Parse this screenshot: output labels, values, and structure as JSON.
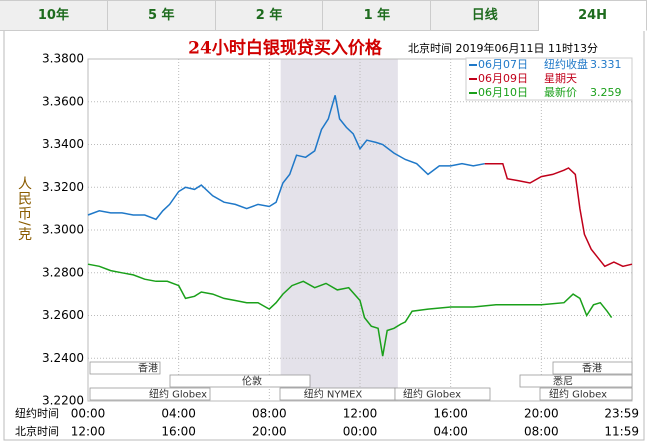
{
  "tabs": [
    "10年",
    "5 年",
    "2 年",
    "1 年",
    "日线",
    "24H"
  ],
  "chart_data": {
    "type": "line",
    "title": "24小时白银现贷买入价格",
    "subtitle": "北京时间 2019年06月11日 11时13分",
    "y_label": "人民币/克",
    "x_label": "纽约时间",
    "x2_label": "北京时间",
    "xlim": [
      0,
      24
    ],
    "xticks": [
      {
        "value": 0,
        "label": "00:00"
      },
      {
        "value": 4,
        "label": "04:00"
      },
      {
        "value": 8,
        "label": "08:00"
      },
      {
        "value": 12,
        "label": "12:00"
      },
      {
        "value": 16,
        "label": "16:00"
      },
      {
        "value": 20,
        "label": "20:00"
      },
      {
        "value": 23.983,
        "label": "23:59"
      }
    ],
    "x2ticks": [
      {
        "value": 0,
        "label": "12:00"
      },
      {
        "value": 4,
        "label": "16:00"
      },
      {
        "value": 8,
        "label": "20:00"
      },
      {
        "value": 12,
        "label": "00:00"
      },
      {
        "value": 16,
        "label": "04:00"
      },
      {
        "value": 20,
        "label": "08:00"
      },
      {
        "value": 23.983,
        "label": "11:59"
      }
    ],
    "ylim": [
      3.22,
      3.38
    ],
    "yticks": [
      {
        "value": 3.22,
        "label": "3.2200"
      },
      {
        "value": 3.24,
        "label": "3.2400"
      },
      {
        "value": 3.26,
        "label": "3.2600"
      },
      {
        "value": 3.28,
        "label": "3.2800"
      },
      {
        "value": 3.3,
        "label": "3.3000"
      },
      {
        "value": 3.32,
        "label": "3.3200"
      },
      {
        "value": 3.34,
        "label": "3.3400"
      },
      {
        "value": 3.36,
        "label": "3.3600"
      },
      {
        "value": 3.38,
        "label": "3.3800"
      }
    ],
    "grid": true,
    "highlight": [
      8.5,
      13.67
    ],
    "sessions": [
      "香港",
      "香港",
      "伦敦",
      "悉尼",
      "纽约 Globex",
      "纽约 NYMEX",
      "纽约 Globex",
      "纽约 Globex"
    ],
    "series": [
      {
        "name": "06月07日",
        "note": "纽约收盘",
        "last": 3.331,
        "color": "#1f78c8",
        "x": [
          0,
          0.5,
          1,
          1.5,
          2,
          2.5,
          3,
          3.3,
          3.6,
          4,
          4.3,
          4.7,
          5,
          5.5,
          6,
          6.5,
          7,
          7.5,
          8,
          8.3,
          8.6,
          8.9,
          9.2,
          9.6,
          10,
          10.3,
          10.6,
          10.9,
          11.1,
          11.4,
          11.7,
          12,
          12.3,
          12.7,
          13,
          13.5,
          14,
          14.5,
          15,
          15.5,
          16,
          16.5,
          17,
          17.5
        ],
        "values": [
          3.307,
          3.309,
          3.308,
          3.308,
          3.307,
          3.307,
          3.305,
          3.309,
          3.312,
          3.318,
          3.32,
          3.319,
          3.321,
          3.316,
          3.313,
          3.312,
          3.31,
          3.312,
          3.311,
          3.313,
          3.322,
          3.326,
          3.335,
          3.334,
          3.337,
          3.347,
          3.352,
          3.363,
          3.352,
          3.348,
          3.345,
          3.338,
          3.342,
          3.341,
          3.34,
          3.336,
          3.333,
          3.331,
          3.326,
          3.33,
          3.33,
          3.331,
          3.33,
          3.331
        ]
      },
      {
        "name": "06月09日",
        "note": "星期天",
        "color": "#c0001a",
        "x": [
          17.5,
          18.3,
          18.5,
          19,
          19.5,
          20,
          20.5,
          21,
          21.2,
          21.5,
          21.7,
          21.9,
          22.2,
          22.5,
          22.8,
          23.2,
          23.6,
          24
        ],
        "values": [
          3.331,
          3.331,
          3.324,
          3.323,
          3.322,
          3.325,
          3.326,
          3.328,
          3.329,
          3.326,
          3.31,
          3.298,
          3.291,
          3.287,
          3.283,
          3.285,
          3.283,
          3.284
        ]
      },
      {
        "name": "06月10日",
        "note": "最新价",
        "last": 3.259,
        "color": "#1aa01a",
        "x": [
          0,
          0.5,
          1,
          1.5,
          2,
          2.5,
          3,
          3.5,
          4,
          4.3,
          4.7,
          5,
          5.5,
          6,
          6.5,
          7,
          7.5,
          8,
          8.3,
          8.6,
          9,
          9.5,
          10,
          10.5,
          11,
          11.5,
          12,
          12.2,
          12.5,
          12.8,
          13,
          13.2,
          13.5,
          13.8,
          14,
          14.3,
          15,
          16,
          17,
          18,
          19,
          20,
          21,
          21.4,
          21.7,
          22,
          22.3,
          22.6,
          22.9,
          23.1
        ],
        "values": [
          3.284,
          3.283,
          3.281,
          3.28,
          3.279,
          3.277,
          3.276,
          3.276,
          3.274,
          3.268,
          3.269,
          3.271,
          3.27,
          3.268,
          3.267,
          3.266,
          3.266,
          3.263,
          3.266,
          3.27,
          3.274,
          3.276,
          3.273,
          3.275,
          3.272,
          3.273,
          3.267,
          3.259,
          3.255,
          3.254,
          3.241,
          3.253,
          3.254,
          3.256,
          3.257,
          3.262,
          3.263,
          3.264,
          3.264,
          3.265,
          3.265,
          3.265,
          3.266,
          3.27,
          3.268,
          3.26,
          3.265,
          3.266,
          3.262,
          3.259
        ]
      }
    ]
  }
}
